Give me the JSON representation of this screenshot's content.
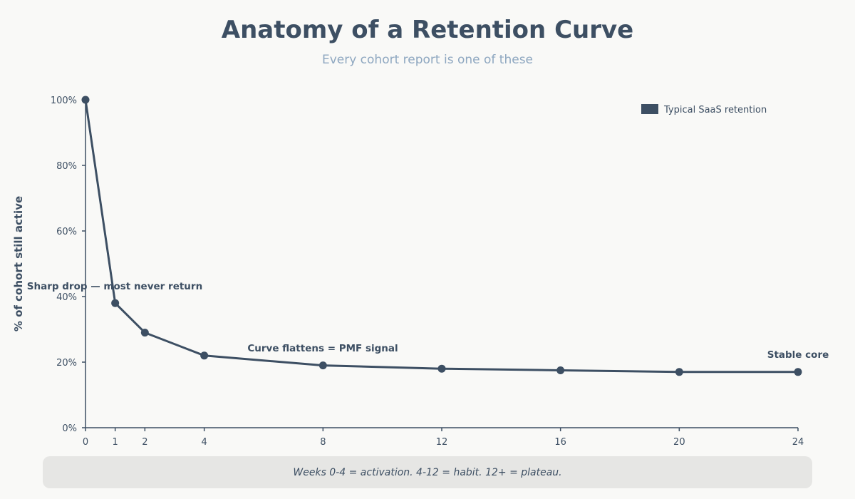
{
  "title": "Anatomy of a Retention Curve",
  "subtitle": "Every cohort report is one of these",
  "footer": "Weeks 0-4 = activation. 4-12 = habit. 12+ = plateau.",
  "chart_data": {
    "type": "line",
    "ylabel": "% of cohort still active",
    "xlabel": "",
    "xlim": [
      0,
      24
    ],
    "ylim": [
      0,
      100
    ],
    "x_ticks": [
      0,
      1,
      2,
      4,
      8,
      12,
      16,
      20,
      24
    ],
    "y_ticks": [
      "0%",
      "20%",
      "40%",
      "60%",
      "80%",
      "100%"
    ],
    "y_tick_values": [
      0,
      20,
      40,
      60,
      80,
      100
    ],
    "grid": false,
    "legend_position": "top-right",
    "color": "#3d4f63",
    "series": [
      {
        "name": "Typical SaaS retention",
        "x": [
          0,
          1,
          2,
          4,
          8,
          12,
          16,
          20,
          24
        ],
        "y": [
          100,
          38,
          29,
          22,
          19,
          18,
          17.5,
          17,
          17
        ]
      }
    ],
    "annotations": [
      {
        "text": "Sharp drop — most never return",
        "x": 1,
        "y": 42
      },
      {
        "text": "Curve flattens = PMF signal",
        "x": 8,
        "y": 24
      },
      {
        "text": "Stable core",
        "x": 24,
        "y": 22
      }
    ]
  }
}
